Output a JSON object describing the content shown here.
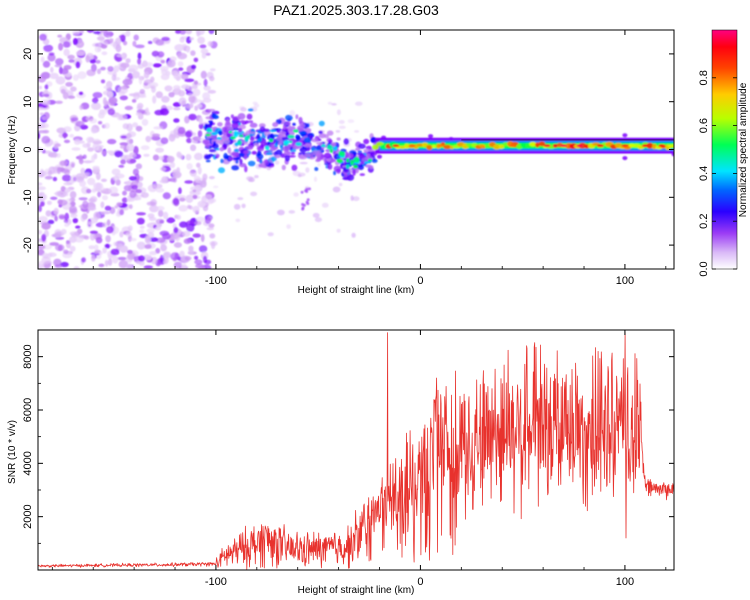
{
  "title": "PAZ1.2025.303.17.28.G03",
  "chart_data": [
    {
      "type": "heatmap",
      "name": "spectrogram",
      "xlabel": "Height of straight line (km)",
      "ylabel": "Frequency (Hz)",
      "xlim": [
        -187,
        124
      ],
      "ylim": [
        -25,
        25
      ],
      "xticks": [
        -100,
        0,
        100
      ],
      "xtick_labels": [
        "-100",
        "0",
        "100"
      ],
      "yticks": [
        -20,
        -10,
        0,
        10,
        20
      ],
      "ytick_labels": [
        "-20",
        "-10",
        "0",
        "10",
        "20"
      ],
      "colorbar": {
        "label": "Normalized spectral amplitude",
        "range": [
          0,
          1
        ],
        "ticks": [
          0.0,
          0.2,
          0.4,
          0.6,
          0.8
        ],
        "tick_labels": [
          "0.0",
          "0.2",
          "0.4",
          "0.6",
          "0.8"
        ],
        "colors": [
          "#ffffff",
          "#c58cf2",
          "#7b00ff",
          "#0000ff",
          "#00e5ff",
          "#00ff40",
          "#e5ff00",
          "#ff8000",
          "#ff0000",
          "#ff0080"
        ]
      },
      "features": {
        "noise_region_x": [
          -187,
          -105
        ],
        "scattered_region_x": [
          -105,
          -22
        ],
        "band_x": [
          -22,
          124
        ],
        "band_center_hz": 0.8,
        "band_width_hz": 1.5,
        "scatter_centroid_hz": [
          {
            "x": -105,
            "y": 3
          },
          {
            "x": -90,
            "y": 2
          },
          {
            "x": -75,
            "y": 1
          },
          {
            "x": -60,
            "y": 2.5
          },
          {
            "x": -45,
            "y": 0
          },
          {
            "x": -35,
            "y": -3
          },
          {
            "x": -28,
            "y": -2
          },
          {
            "x": -22,
            "y": 0
          }
        ]
      }
    },
    {
      "type": "line",
      "name": "snr",
      "xlabel": "Height of straight line (km)",
      "ylabel": "SNR (10 * v/v)",
      "xlim": [
        -187,
        124
      ],
      "ylim": [
        0,
        9000
      ],
      "xticks": [
        -100,
        0,
        100
      ],
      "xtick_labels": [
        "-100",
        "0",
        "100"
      ],
      "yticks": [
        2000,
        4000,
        6000,
        8000
      ],
      "ytick_labels": [
        "2000",
        "4000",
        "6000",
        "8000"
      ],
      "color": "#e8322d",
      "x": [
        -187,
        -150,
        -120,
        -100,
        -95,
        -85,
        -75,
        -65,
        -55,
        -45,
        -35,
        -25,
        -20,
        -15,
        -10,
        -5,
        0,
        5,
        10,
        20,
        30,
        40,
        50,
        60,
        70,
        80,
        90,
        100,
        105,
        108,
        110,
        115,
        124
      ],
      "values": [
        150,
        180,
        200,
        230,
        550,
        850,
        1150,
        800,
        750,
        800,
        900,
        1700,
        2500,
        2700,
        2900,
        3200,
        3500,
        3900,
        4400,
        4800,
        5000,
        5200,
        5200,
        5100,
        5200,
        5100,
        5100,
        5050,
        4900,
        4800,
        3100,
        3050,
        3000
      ],
      "spikes": [
        {
          "x": -16,
          "y": 8900
        },
        {
          "x": 8,
          "y": 7200
        },
        {
          "x": 35,
          "y": 6800
        },
        {
          "x": 100,
          "y": 8900
        },
        {
          "x": 100.5,
          "y": 1200
        }
      ]
    }
  ]
}
